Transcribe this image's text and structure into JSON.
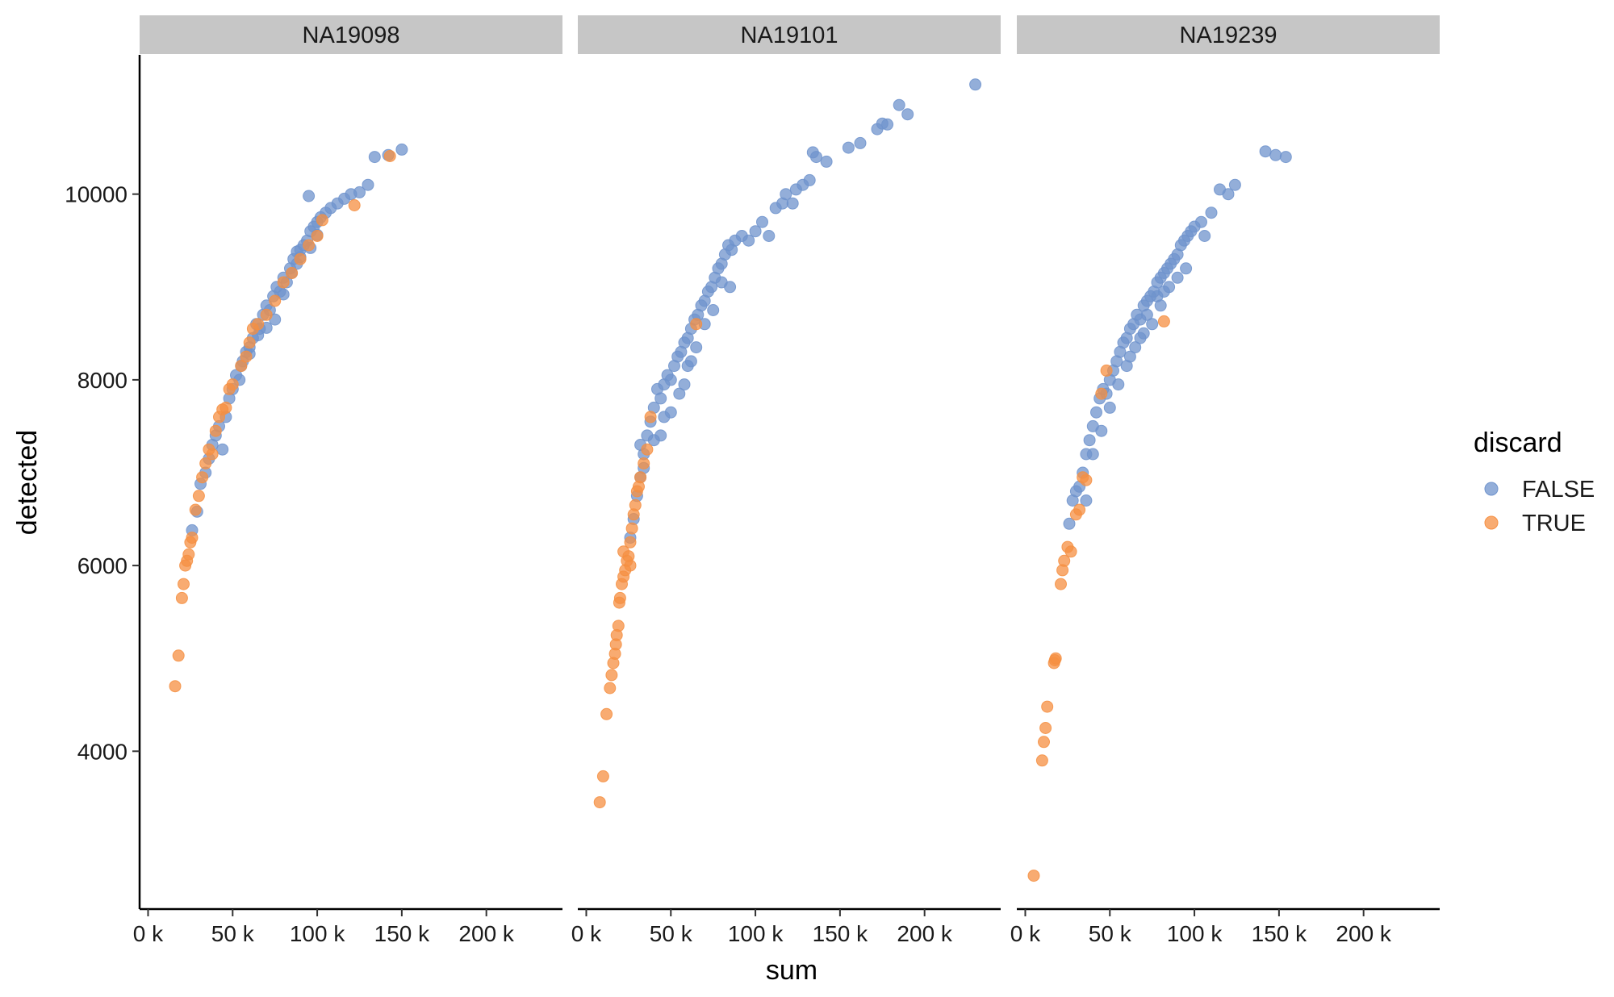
{
  "chart_data": {
    "type": "scatter",
    "facet_by": "cell line",
    "panels": [
      "NA19098",
      "NA19101",
      "NA19239"
    ],
    "xlabel": "sum",
    "ylabel": "detected",
    "xlim": [
      -5000,
      245000
    ],
    "ylim": [
      2300,
      11500
    ],
    "x_ticks": [
      0,
      50000,
      100000,
      150000,
      200000
    ],
    "x_tick_labels": [
      "0 k",
      "50 k",
      "100 k",
      "150 k",
      "200 k"
    ],
    "y_ticks": [
      4000,
      6000,
      8000,
      10000
    ],
    "y_tick_labels": [
      "4000",
      "6000",
      "8000",
      "10000"
    ],
    "legend": {
      "title": "discard",
      "position": "right",
      "entries": [
        {
          "label": "FALSE",
          "color": "#6f93cc"
        },
        {
          "label": "TRUE",
          "color": "#f58f42"
        }
      ]
    },
    "colors": {
      "FALSE": "#6f93cc",
      "TRUE": "#f58f42",
      "strip": "#c6c6c6"
    },
    "series": [
      {
        "panel": "NA19098",
        "discard": "FALSE",
        "points": [
          [
            26000,
            6380
          ],
          [
            29000,
            6580
          ],
          [
            31000,
            6880
          ],
          [
            34000,
            7000
          ],
          [
            36000,
            7150
          ],
          [
            38000,
            7300
          ],
          [
            40000,
            7400
          ],
          [
            42000,
            7500
          ],
          [
            44000,
            7250
          ],
          [
            46000,
            7600
          ],
          [
            48000,
            7800
          ],
          [
            50000,
            7900
          ],
          [
            52000,
            8050
          ],
          [
            54000,
            8000
          ],
          [
            56000,
            8200
          ],
          [
            58000,
            8300
          ],
          [
            60000,
            8350
          ],
          [
            62000,
            8450
          ],
          [
            64000,
            8600
          ],
          [
            66000,
            8550
          ],
          [
            68000,
            8700
          ],
          [
            70000,
            8800
          ],
          [
            72000,
            8750
          ],
          [
            74000,
            8900
          ],
          [
            76000,
            9000
          ],
          [
            78000,
            8950
          ],
          [
            80000,
            9100
          ],
          [
            82000,
            9050
          ],
          [
            84000,
            9200
          ],
          [
            86000,
            9300
          ],
          [
            88000,
            9250
          ],
          [
            90000,
            9400
          ],
          [
            92000,
            9450
          ],
          [
            94000,
            9500
          ],
          [
            96000,
            9600
          ],
          [
            98000,
            9650
          ],
          [
            100000,
            9700
          ],
          [
            102000,
            9750
          ],
          [
            105000,
            9800
          ],
          [
            108000,
            9850
          ],
          [
            112000,
            9900
          ],
          [
            116000,
            9950
          ],
          [
            120000,
            10000
          ],
          [
            125000,
            10020
          ],
          [
            130000,
            10100
          ],
          [
            134000,
            10400
          ],
          [
            142000,
            10420
          ],
          [
            150000,
            10480
          ],
          [
            95000,
            9980
          ],
          [
            55000,
            8150
          ],
          [
            60000,
            8280
          ],
          [
            70000,
            8560
          ],
          [
            80000,
            8920
          ],
          [
            90000,
            9320
          ],
          [
            100000,
            9560
          ],
          [
            85000,
            9150
          ],
          [
            75000,
            8650
          ],
          [
            65000,
            8480
          ],
          [
            88000,
            9380
          ],
          [
            96000,
            9420
          ]
        ]
      },
      {
        "panel": "NA19098",
        "discard": "TRUE",
        "points": [
          [
            16000,
            4700
          ],
          [
            18000,
            5030
          ],
          [
            20000,
            5650
          ],
          [
            21000,
            5800
          ],
          [
            22000,
            6000
          ],
          [
            23000,
            6050
          ],
          [
            24000,
            6120
          ],
          [
            25000,
            6250
          ],
          [
            26000,
            6300
          ],
          [
            28000,
            6600
          ],
          [
            30000,
            6750
          ],
          [
            32000,
            6950
          ],
          [
            34000,
            7100
          ],
          [
            36000,
            7250
          ],
          [
            38000,
            7200
          ],
          [
            40000,
            7450
          ],
          [
            42000,
            7600
          ],
          [
            44000,
            7680
          ],
          [
            46000,
            7700
          ],
          [
            48000,
            7900
          ],
          [
            50000,
            7950
          ],
          [
            55000,
            8150
          ],
          [
            58000,
            8250
          ],
          [
            60000,
            8400
          ],
          [
            62000,
            8550
          ],
          [
            65000,
            8600
          ],
          [
            70000,
            8700
          ],
          [
            75000,
            8850
          ],
          [
            80000,
            9050
          ],
          [
            85000,
            9150
          ],
          [
            90000,
            9300
          ],
          [
            95000,
            9450
          ],
          [
            100000,
            9550
          ],
          [
            103000,
            9720
          ],
          [
            122000,
            9880
          ],
          [
            143000,
            10410
          ]
        ]
      },
      {
        "panel": "NA19101",
        "discard": "FALSE",
        "points": [
          [
            26000,
            6300
          ],
          [
            28000,
            6500
          ],
          [
            30000,
            6750
          ],
          [
            32000,
            6950
          ],
          [
            34000,
            7200
          ],
          [
            36000,
            7400
          ],
          [
            38000,
            7550
          ],
          [
            40000,
            7700
          ],
          [
            42000,
            7900
          ],
          [
            44000,
            7800
          ],
          [
            46000,
            7950
          ],
          [
            48000,
            8050
          ],
          [
            50000,
            8000
          ],
          [
            52000,
            8150
          ],
          [
            54000,
            8250
          ],
          [
            56000,
            8300
          ],
          [
            58000,
            8400
          ],
          [
            60000,
            8450
          ],
          [
            62000,
            8550
          ],
          [
            64000,
            8650
          ],
          [
            66000,
            8700
          ],
          [
            68000,
            8800
          ],
          [
            70000,
            8850
          ],
          [
            72000,
            8950
          ],
          [
            74000,
            9000
          ],
          [
            76000,
            9100
          ],
          [
            78000,
            9200
          ],
          [
            80000,
            9250
          ],
          [
            82000,
            9350
          ],
          [
            84000,
            9450
          ],
          [
            86000,
            9400
          ],
          [
            88000,
            9500
          ],
          [
            92000,
            9550
          ],
          [
            96000,
            9500
          ],
          [
            100000,
            9600
          ],
          [
            104000,
            9700
          ],
          [
            108000,
            9550
          ],
          [
            112000,
            9850
          ],
          [
            116000,
            9900
          ],
          [
            118000,
            10000
          ],
          [
            122000,
            9900
          ],
          [
            124000,
            10050
          ],
          [
            128000,
            10100
          ],
          [
            132000,
            10150
          ],
          [
            134000,
            10450
          ],
          [
            136000,
            10400
          ],
          [
            142000,
            10350
          ],
          [
            155000,
            10500
          ],
          [
            162000,
            10550
          ],
          [
            172000,
            10700
          ],
          [
            175000,
            10760
          ],
          [
            178000,
            10750
          ],
          [
            185000,
            10960
          ],
          [
            190000,
            10860
          ],
          [
            230000,
            11180
          ],
          [
            44000,
            7400
          ],
          [
            50000,
            7650
          ],
          [
            55000,
            7850
          ],
          [
            60000,
            8150
          ],
          [
            65000,
            8350
          ],
          [
            70000,
            8600
          ],
          [
            75000,
            8750
          ],
          [
            80000,
            9050
          ],
          [
            85000,
            9000
          ],
          [
            62000,
            8200
          ],
          [
            58000,
            7950
          ],
          [
            46000,
            7600
          ],
          [
            40000,
            7350
          ],
          [
            34000,
            7050
          ],
          [
            32000,
            7300
          ]
        ]
      },
      {
        "panel": "NA19101",
        "discard": "TRUE",
        "points": [
          [
            8000,
            3450
          ],
          [
            10000,
            3730
          ],
          [
            12000,
            4400
          ],
          [
            14000,
            4680
          ],
          [
            15000,
            4820
          ],
          [
            16000,
            4950
          ],
          [
            17000,
            5050
          ],
          [
            17500,
            5150
          ],
          [
            18000,
            5250
          ],
          [
            19000,
            5350
          ],
          [
            19500,
            5600
          ],
          [
            20000,
            5650
          ],
          [
            21000,
            5800
          ],
          [
            22000,
            5880
          ],
          [
            23000,
            5950
          ],
          [
            24000,
            6050
          ],
          [
            25000,
            6100
          ],
          [
            26000,
            6250
          ],
          [
            27000,
            6400
          ],
          [
            28000,
            6550
          ],
          [
            29000,
            6650
          ],
          [
            30000,
            6800
          ],
          [
            31000,
            6850
          ],
          [
            32000,
            6950
          ],
          [
            34000,
            7100
          ],
          [
            36000,
            7250
          ],
          [
            38000,
            7600
          ],
          [
            65000,
            8600
          ],
          [
            22000,
            6150
          ],
          [
            26000,
            6000
          ]
        ]
      },
      {
        "panel": "NA19239",
        "discard": "FALSE",
        "points": [
          [
            26000,
            6450
          ],
          [
            28000,
            6700
          ],
          [
            30000,
            6800
          ],
          [
            32000,
            6850
          ],
          [
            34000,
            7000
          ],
          [
            36000,
            7200
          ],
          [
            38000,
            7350
          ],
          [
            40000,
            7500
          ],
          [
            42000,
            7650
          ],
          [
            44000,
            7800
          ],
          [
            46000,
            7900
          ],
          [
            48000,
            7850
          ],
          [
            50000,
            8000
          ],
          [
            52000,
            8100
          ],
          [
            54000,
            8200
          ],
          [
            56000,
            8300
          ],
          [
            58000,
            8400
          ],
          [
            60000,
            8450
          ],
          [
            62000,
            8550
          ],
          [
            64000,
            8600
          ],
          [
            66000,
            8700
          ],
          [
            68000,
            8650
          ],
          [
            70000,
            8800
          ],
          [
            72000,
            8850
          ],
          [
            74000,
            8900
          ],
          [
            76000,
            8950
          ],
          [
            78000,
            9050
          ],
          [
            80000,
            9100
          ],
          [
            82000,
            9150
          ],
          [
            84000,
            9200
          ],
          [
            86000,
            9250
          ],
          [
            88000,
            9300
          ],
          [
            90000,
            9350
          ],
          [
            92000,
            9450
          ],
          [
            94000,
            9500
          ],
          [
            96000,
            9550
          ],
          [
            98000,
            9600
          ],
          [
            100000,
            9650
          ],
          [
            104000,
            9700
          ],
          [
            106000,
            9550
          ],
          [
            110000,
            9800
          ],
          [
            115000,
            10050
          ],
          [
            120000,
            10000
          ],
          [
            124000,
            10100
          ],
          [
            142000,
            10460
          ],
          [
            148000,
            10420
          ],
          [
            154000,
            10400
          ],
          [
            40000,
            7200
          ],
          [
            45000,
            7450
          ],
          [
            55000,
            7950
          ],
          [
            60000,
            8150
          ],
          [
            65000,
            8350
          ],
          [
            70000,
            8500
          ],
          [
            75000,
            8600
          ],
          [
            80000,
            8800
          ],
          [
            85000,
            9000
          ],
          [
            90000,
            9100
          ],
          [
            95000,
            9200
          ],
          [
            72000,
            8700
          ],
          [
            78000,
            8900
          ],
          [
            50000,
            7700
          ],
          [
            62000,
            8250
          ],
          [
            68000,
            8450
          ],
          [
            82000,
            8950
          ],
          [
            36000,
            6700
          ]
        ]
      },
      {
        "panel": "NA19239",
        "discard": "TRUE",
        "points": [
          [
            5000,
            2660
          ],
          [
            10000,
            3900
          ],
          [
            11000,
            4100
          ],
          [
            12000,
            4250
          ],
          [
            13000,
            4480
          ],
          [
            17000,
            4950
          ],
          [
            17500,
            4980
          ],
          [
            18000,
            5000
          ],
          [
            21000,
            5800
          ],
          [
            22000,
            5950
          ],
          [
            23000,
            6050
          ],
          [
            25000,
            6200
          ],
          [
            27000,
            6150
          ],
          [
            30000,
            6550
          ],
          [
            32000,
            6600
          ],
          [
            34000,
            6950
          ],
          [
            36000,
            6920
          ],
          [
            45000,
            7850
          ],
          [
            48000,
            8100
          ],
          [
            82000,
            8630
          ]
        ]
      }
    ]
  }
}
